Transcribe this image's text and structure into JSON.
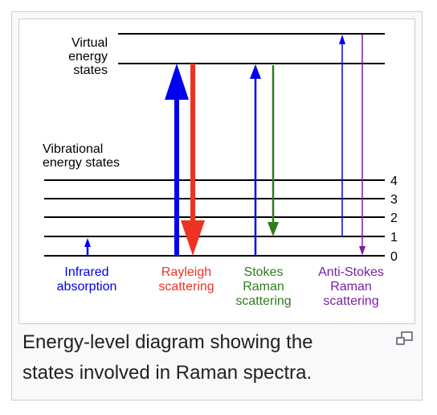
{
  "diagram": {
    "virtual_label": [
      "Virtual",
      "energy",
      "states"
    ],
    "vibrational_label": [
      "Vibrational",
      "energy states"
    ],
    "levels": [
      "4",
      "3",
      "2",
      "1",
      "0"
    ],
    "processes": [
      {
        "label": [
          "Infrared",
          "absorption"
        ],
        "color": "#0000ee"
      },
      {
        "label": [
          "Rayleigh",
          "scattering"
        ],
        "color": "#ee3322"
      },
      {
        "label": [
          "Stokes",
          "Raman",
          "scattering"
        ],
        "color": "#2e7d1e"
      },
      {
        "label": [
          "Anti-Stokes",
          "Raman",
          "scattering"
        ],
        "color": "#7b1fa2"
      }
    ]
  },
  "caption": "Energy-level diagram showing the states involved in Raman spectra.",
  "magnify_icon": "enlarge-icon"
}
